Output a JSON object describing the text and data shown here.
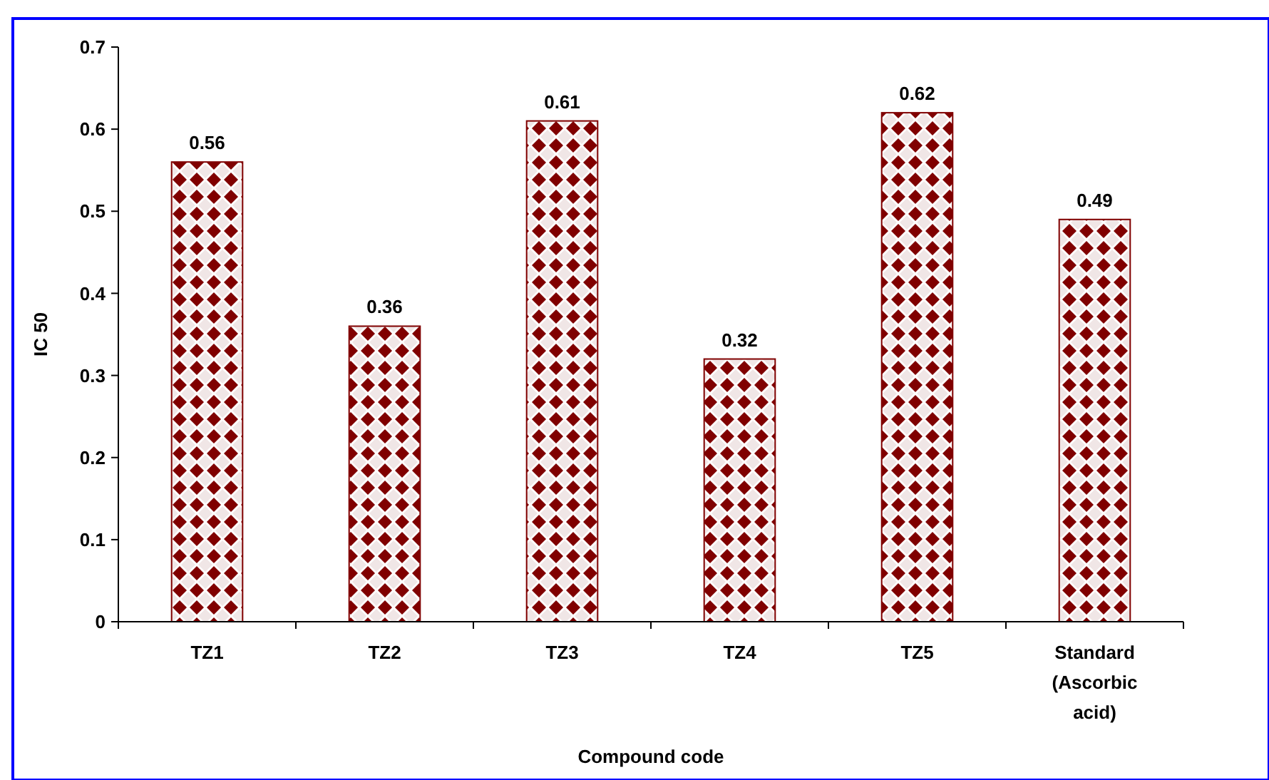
{
  "chart_data": {
    "type": "bar",
    "xlabel": "Compound code",
    "ylabel": "IC 50",
    "categories": [
      "TZ1",
      "TZ2",
      "TZ3",
      "TZ4",
      "TZ5",
      "Standard (Ascorbic acid)"
    ],
    "values": [
      0.56,
      0.36,
      0.61,
      0.32,
      0.62,
      0.49
    ],
    "color": "#800000",
    "ylim": [
      0,
      0.7
    ],
    "yticks": [
      0,
      0.1,
      0.2,
      0.3,
      0.4,
      0.5,
      0.6,
      0.7
    ],
    "data_labels": true,
    "grid": false
  }
}
